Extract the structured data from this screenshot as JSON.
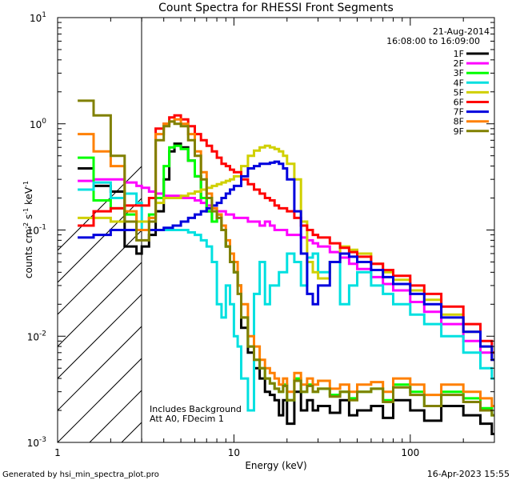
{
  "chart_data": {
    "type": "line",
    "title": "Count Spectra for RHESSI Front Segments",
    "xlabel": "Energy (keV)",
    "ylabel": {
      "base": "counts cm",
      "e1": "-2",
      "mid1": " s",
      "e2": "-1",
      "mid2": " keV",
      "e3": "-1"
    },
    "xscale": "log",
    "yscale": "log",
    "xlim": [
      1,
      300
    ],
    "ylim": [
      0.001,
      10
    ],
    "x_ticks": [
      {
        "v": 1,
        "label": "1"
      },
      {
        "v": 10,
        "label": "10"
      },
      {
        "v": 100,
        "label": "100"
      }
    ],
    "y_ticks": [
      {
        "v": 0.001,
        "base": "10",
        "exp": "-3"
      },
      {
        "v": 0.01,
        "base": "10",
        "exp": "-2"
      },
      {
        "v": 0.1,
        "base": "10",
        "exp": "-1"
      },
      {
        "v": 1,
        "base": "10",
        "exp": "0"
      },
      {
        "v": 10,
        "base": "10",
        "exp": "1"
      }
    ],
    "hatched_region": [
      1,
      3
    ],
    "legend_date": "21-Aug-2014",
    "legend_time": "16:08:00 to 16:09:00",
    "notes": [
      "Includes Background",
      "Att A0, FDecim 1"
    ],
    "series": [
      {
        "name": "1F",
        "color": "#000000",
        "x": [
          1.3,
          1.6,
          2.0,
          2.4,
          2.8,
          3.0,
          3.3,
          3.6,
          4.0,
          4.3,
          4.6,
          5.0,
          5.5,
          6.0,
          6.5,
          7.0,
          7.5,
          8.0,
          8.5,
          9.0,
          9.5,
          10,
          10.5,
          11,
          12,
          13,
          14,
          15,
          16,
          17,
          18,
          19,
          20,
          22,
          24,
          26,
          28,
          30,
          35,
          40,
          45,
          50,
          60,
          70,
          80,
          100,
          120,
          150,
          200,
          250,
          290
        ],
        "y": [
          0.38,
          0.26,
          0.23,
          0.07,
          0.06,
          0.07,
          0.09,
          0.15,
          0.3,
          0.55,
          0.65,
          0.6,
          0.45,
          0.32,
          0.2,
          0.15,
          0.12,
          0.14,
          0.1,
          0.07,
          0.05,
          0.04,
          0.03,
          0.012,
          0.007,
          0.005,
          0.004,
          0.003,
          0.0028,
          0.0025,
          0.0018,
          0.0025,
          0.0015,
          0.003,
          0.002,
          0.0025,
          0.002,
          0.0022,
          0.0019,
          0.0025,
          0.0018,
          0.002,
          0.0022,
          0.0017,
          0.0025,
          0.002,
          0.0016,
          0.0022,
          0.0018,
          0.0015,
          0.0012
        ]
      },
      {
        "name": "2F",
        "color": "#ff00ff",
        "x": [
          1.3,
          1.6,
          2.0,
          2.4,
          2.8,
          3.0,
          3.3,
          3.6,
          4.0,
          4.5,
          5.0,
          5.5,
          6.0,
          6.5,
          7.0,
          7.5,
          8.0,
          8.5,
          9.0,
          9.5,
          10,
          11,
          12,
          13,
          14,
          15,
          16,
          17,
          18,
          20,
          22,
          24,
          26,
          28,
          30,
          35,
          40,
          45,
          50,
          60,
          70,
          80,
          100,
          120,
          150,
          200,
          250,
          290
        ],
        "y": [
          0.29,
          0.3,
          0.3,
          0.28,
          0.26,
          0.25,
          0.23,
          0.22,
          0.21,
          0.21,
          0.2,
          0.2,
          0.19,
          0.18,
          0.17,
          0.16,
          0.15,
          0.15,
          0.14,
          0.14,
          0.13,
          0.13,
          0.12,
          0.12,
          0.11,
          0.12,
          0.11,
          0.1,
          0.1,
          0.09,
          0.09,
          0.085,
          0.08,
          0.075,
          0.07,
          0.062,
          0.055,
          0.048,
          0.043,
          0.036,
          0.031,
          0.027,
          0.021,
          0.017,
          0.013,
          0.009,
          0.007,
          0.006
        ]
      },
      {
        "name": "3F",
        "color": "#00ff00",
        "x": [
          1.3,
          1.6,
          2.0,
          2.4,
          2.8,
          3.0,
          3.3,
          3.6,
          4.0,
          4.3,
          4.6,
          5.0,
          5.5,
          6.0,
          6.5,
          7.0,
          7.5,
          8.0,
          8.5,
          9.0,
          9.5,
          10,
          10.5,
          11,
          12,
          13,
          14,
          15,
          16,
          17,
          18,
          19,
          20,
          22,
          24,
          26,
          28,
          30,
          35,
          40,
          45,
          50,
          60,
          70,
          80,
          100,
          120,
          150,
          200,
          250,
          290
        ],
        "y": [
          0.48,
          0.19,
          0.16,
          0.14,
          0.12,
          0.12,
          0.14,
          0.2,
          0.4,
          0.6,
          0.62,
          0.58,
          0.45,
          0.32,
          0.2,
          0.15,
          0.12,
          0.14,
          0.1,
          0.07,
          0.05,
          0.04,
          0.03,
          0.015,
          0.008,
          0.006,
          0.005,
          0.004,
          0.0036,
          0.0032,
          0.003,
          0.0035,
          0.0025,
          0.004,
          0.003,
          0.0035,
          0.003,
          0.0032,
          0.0028,
          0.003,
          0.0026,
          0.003,
          0.0032,
          0.0025,
          0.0035,
          0.003,
          0.0022,
          0.003,
          0.0026,
          0.0021,
          0.0018
        ]
      },
      {
        "name": "4F",
        "color": "#00e0e0",
        "x": [
          1.3,
          1.6,
          2.0,
          2.4,
          2.8,
          3.0,
          3.3,
          3.6,
          4.0,
          4.5,
          5.0,
          5.5,
          6.0,
          6.5,
          7.0,
          7.5,
          8.0,
          8.5,
          9.0,
          9.5,
          10,
          10.5,
          11,
          12,
          13,
          14,
          15,
          16,
          18,
          20,
          22,
          24,
          26,
          28,
          30,
          35,
          40,
          45,
          50,
          60,
          70,
          80,
          100,
          120,
          150,
          200,
          250,
          290
        ],
        "y": [
          0.24,
          0.28,
          0.2,
          0.22,
          0.18,
          0.1,
          0.1,
          0.1,
          0.1,
          0.1,
          0.1,
          0.095,
          0.09,
          0.08,
          0.07,
          0.05,
          0.02,
          0.015,
          0.03,
          0.02,
          0.01,
          0.008,
          0.004,
          0.002,
          0.025,
          0.05,
          0.02,
          0.03,
          0.04,
          0.06,
          0.05,
          0.03,
          0.055,
          0.06,
          0.04,
          0.05,
          0.02,
          0.03,
          0.04,
          0.03,
          0.025,
          0.02,
          0.016,
          0.013,
          0.01,
          0.007,
          0.005,
          0.004
        ]
      },
      {
        "name": "5F",
        "color": "#d0d000",
        "x": [
          1.3,
          1.6,
          2.0,
          2.4,
          2.8,
          3.0,
          3.3,
          3.6,
          4.0,
          4.5,
          5.0,
          5.5,
          6.0,
          6.5,
          7.0,
          7.5,
          8.0,
          8.5,
          9.0,
          9.5,
          10,
          11,
          12,
          13,
          14,
          15,
          16,
          17,
          18,
          19,
          20,
          22,
          24,
          26,
          28,
          30,
          35,
          40,
          45,
          50,
          60,
          70,
          80,
          100,
          120,
          150,
          200,
          250,
          290
        ],
        "y": [
          0.13,
          0.13,
          0.12,
          0.12,
          0.12,
          0.12,
          0.13,
          0.18,
          0.2,
          0.2,
          0.21,
          0.22,
          0.23,
          0.24,
          0.25,
          0.26,
          0.27,
          0.28,
          0.29,
          0.3,
          0.32,
          0.4,
          0.5,
          0.56,
          0.6,
          0.62,
          0.6,
          0.58,
          0.55,
          0.5,
          0.42,
          0.3,
          0.12,
          0.05,
          0.04,
          0.035,
          0.05,
          0.07,
          0.065,
          0.06,
          0.048,
          0.04,
          0.034,
          0.027,
          0.022,
          0.016,
          0.011,
          0.008,
          0.006
        ]
      },
      {
        "name": "6F",
        "color": "#ff0000",
        "x": [
          1.3,
          1.6,
          2.0,
          2.4,
          2.8,
          3.0,
          3.3,
          3.6,
          4.0,
          4.3,
          4.6,
          5.0,
          5.5,
          6.0,
          6.5,
          7.0,
          7.5,
          8.0,
          8.5,
          9.0,
          9.5,
          10,
          11,
          12,
          13,
          14,
          15,
          16,
          17,
          18,
          20,
          22,
          24,
          26,
          28,
          30,
          35,
          40,
          45,
          50,
          60,
          70,
          80,
          100,
          120,
          150,
          200,
          250,
          290
        ],
        "y": [
          0.11,
          0.15,
          0.16,
          0.17,
          0.17,
          0.17,
          0.2,
          0.9,
          1.0,
          1.15,
          1.2,
          1.1,
          0.95,
          0.8,
          0.7,
          0.62,
          0.55,
          0.48,
          0.42,
          0.4,
          0.37,
          0.35,
          0.3,
          0.27,
          0.24,
          0.22,
          0.2,
          0.19,
          0.17,
          0.16,
          0.15,
          0.13,
          0.11,
          0.1,
          0.09,
          0.085,
          0.075,
          0.068,
          0.062,
          0.056,
          0.048,
          0.042,
          0.037,
          0.03,
          0.025,
          0.019,
          0.013,
          0.009,
          0.007
        ]
      },
      {
        "name": "7F",
        "color": "#0000dd",
        "x": [
          1.3,
          1.6,
          2.0,
          2.4,
          2.8,
          3.0,
          3.3,
          3.6,
          4.0,
          4.5,
          5.0,
          5.5,
          6.0,
          6.5,
          7.0,
          7.5,
          8.0,
          8.5,
          9.0,
          9.5,
          10,
          11,
          12,
          13,
          14,
          15,
          16,
          17,
          18,
          19,
          20,
          22,
          24,
          26,
          28,
          30,
          35,
          40,
          45,
          50,
          60,
          70,
          80,
          100,
          120,
          150,
          200,
          250,
          290
        ],
        "y": [
          0.085,
          0.09,
          0.1,
          0.1,
          0.1,
          0.1,
          0.1,
          0.1,
          0.105,
          0.11,
          0.12,
          0.13,
          0.14,
          0.15,
          0.16,
          0.17,
          0.18,
          0.2,
          0.22,
          0.24,
          0.26,
          0.32,
          0.38,
          0.4,
          0.42,
          0.42,
          0.43,
          0.44,
          0.42,
          0.38,
          0.3,
          0.15,
          0.06,
          0.025,
          0.02,
          0.03,
          0.05,
          0.06,
          0.056,
          0.05,
          0.042,
          0.036,
          0.031,
          0.025,
          0.02,
          0.015,
          0.011,
          0.008,
          0.006
        ]
      },
      {
        "name": "8F",
        "color": "#ff8000",
        "x": [
          1.3,
          1.6,
          2.0,
          2.4,
          2.8,
          3.0,
          3.3,
          3.6,
          4.0,
          4.3,
          4.6,
          5.0,
          5.5,
          6.0,
          6.5,
          7.0,
          7.5,
          8.0,
          8.5,
          9.0,
          9.5,
          10,
          10.5,
          11,
          12,
          13,
          14,
          15,
          16,
          17,
          18,
          19,
          20,
          22,
          24,
          26,
          28,
          30,
          35,
          40,
          45,
          50,
          60,
          70,
          80,
          100,
          120,
          150,
          200,
          250,
          290
        ],
        "y": [
          0.8,
          0.55,
          0.4,
          0.15,
          0.1,
          0.1,
          0.13,
          0.8,
          1.0,
          1.05,
          1.1,
          1.0,
          0.8,
          0.55,
          0.35,
          0.22,
          0.16,
          0.14,
          0.11,
          0.08,
          0.06,
          0.05,
          0.03,
          0.02,
          0.01,
          0.008,
          0.006,
          0.005,
          0.0045,
          0.004,
          0.0035,
          0.004,
          0.003,
          0.0045,
          0.0035,
          0.004,
          0.0035,
          0.0038,
          0.0032,
          0.0035,
          0.003,
          0.0035,
          0.0037,
          0.003,
          0.004,
          0.0035,
          0.0028,
          0.0035,
          0.003,
          0.0026,
          0.0022
        ]
      },
      {
        "name": "9F",
        "color": "#808000",
        "x": [
          1.3,
          1.6,
          2.0,
          2.4,
          2.8,
          3.0,
          3.3,
          3.6,
          4.0,
          4.3,
          4.6,
          5.0,
          5.5,
          6.0,
          6.5,
          7.0,
          7.5,
          8.0,
          8.5,
          9.0,
          9.5,
          10,
          10.5,
          11,
          12,
          13,
          14,
          15,
          16,
          17,
          18,
          19,
          20,
          22,
          24,
          26,
          28,
          30,
          35,
          40,
          45,
          50,
          60,
          70,
          80,
          100,
          120,
          150,
          200,
          250,
          290
        ],
        "y": [
          1.65,
          1.2,
          0.5,
          0.12,
          0.08,
          0.08,
          0.12,
          0.7,
          0.95,
          1.05,
          1.0,
          0.95,
          0.7,
          0.5,
          0.3,
          0.2,
          0.15,
          0.13,
          0.1,
          0.07,
          0.05,
          0.04,
          0.025,
          0.015,
          0.008,
          0.006,
          0.005,
          0.004,
          0.0036,
          0.0032,
          0.003,
          0.0034,
          0.0025,
          0.0038,
          0.003,
          0.0034,
          0.003,
          0.0032,
          0.0027,
          0.003,
          0.0025,
          0.003,
          0.0032,
          0.0024,
          0.0033,
          0.0028,
          0.0022,
          0.0028,
          0.0024,
          0.002,
          0.0018
        ]
      }
    ]
  },
  "footer": {
    "generated": "Generated by hsi_min_spectra_plot.pro",
    "date": "16-Apr-2023 15:55"
  }
}
